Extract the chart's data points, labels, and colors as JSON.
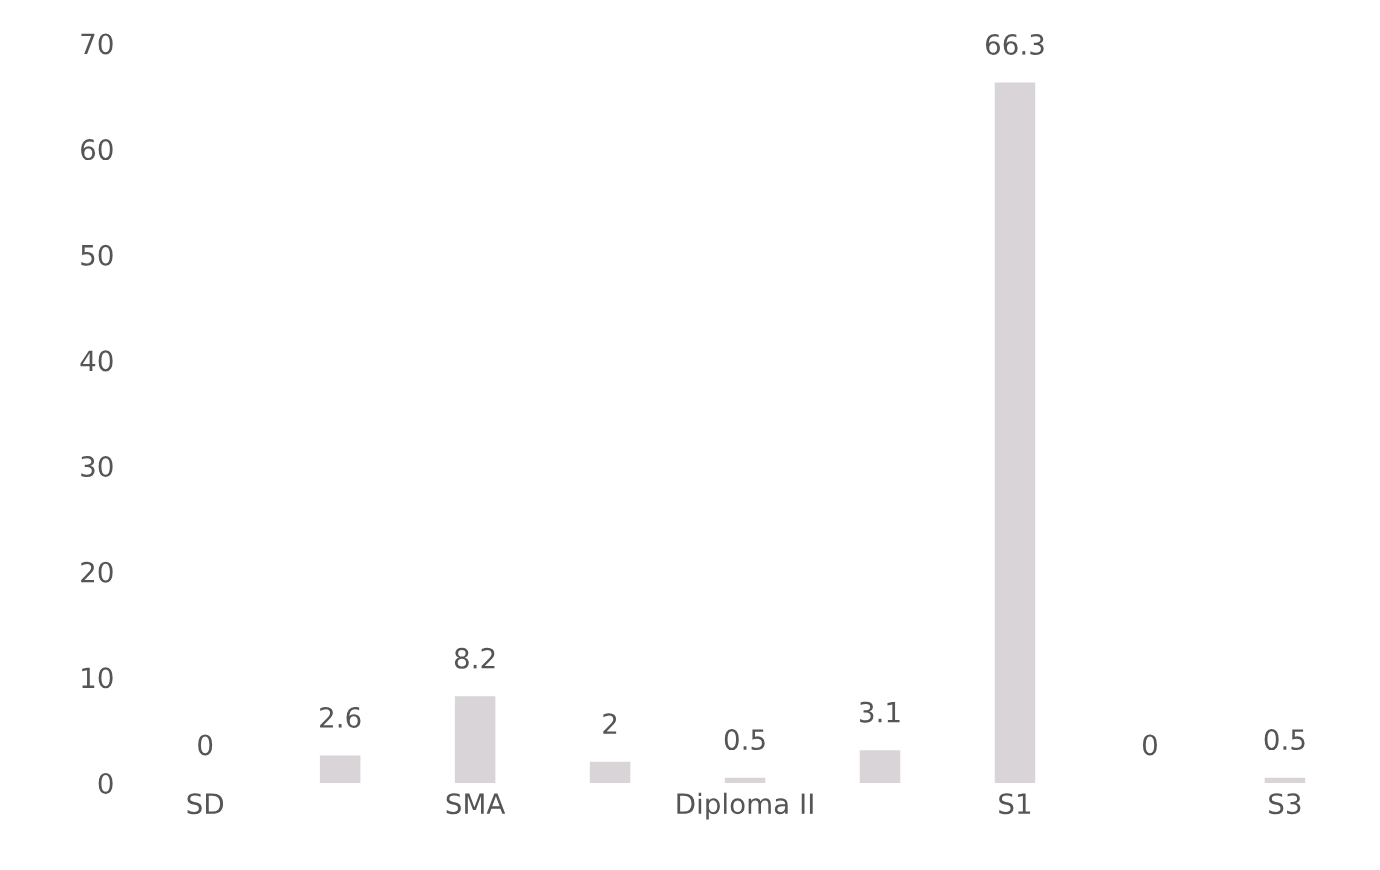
{
  "chart_data": {
    "type": "bar",
    "categories": [
      "SD",
      null,
      "SMA",
      null,
      "Diploma II",
      null,
      "S1",
      null,
      "S3"
    ],
    "values": [
      0,
      2.6,
      8.2,
      2,
      0.5,
      3.1,
      66.3,
      0,
      0.5
    ],
    "color": "#d9d4d8",
    "ylim": [
      0,
      70
    ],
    "yticks": [
      0,
      10,
      20,
      30,
      40,
      50,
      60,
      70
    ],
    "grid": false,
    "data_labels": true
  }
}
